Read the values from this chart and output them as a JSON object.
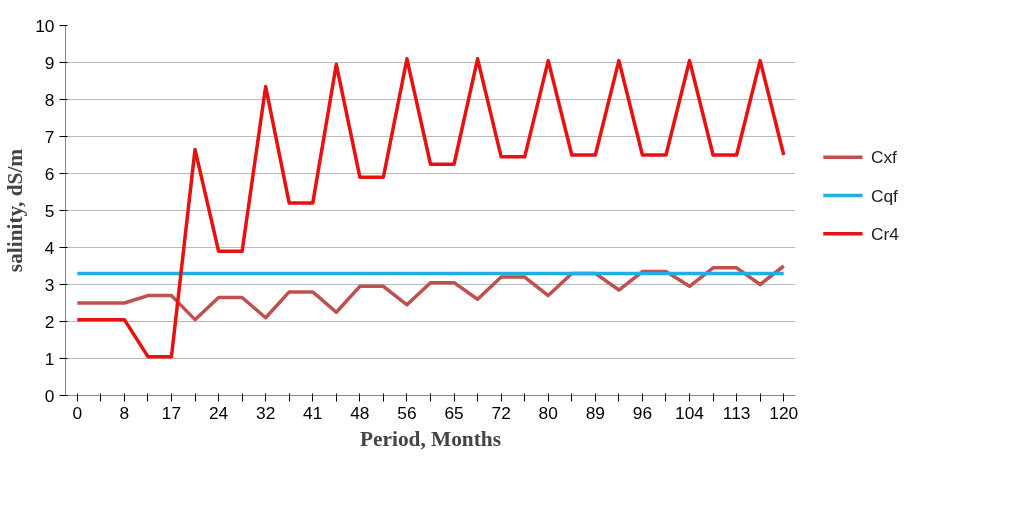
{
  "chart_data": {
    "type": "line",
    "xlabel": "Period, Months",
    "ylabel": "salinity, dS/m",
    "categories": [
      "0",
      null,
      "8",
      null,
      "17",
      null,
      "24",
      null,
      "32",
      null,
      "41",
      null,
      "48",
      null,
      "56",
      null,
      "65",
      null,
      "72",
      null,
      "80",
      null,
      "89",
      null,
      "96",
      null,
      "104",
      null,
      "113",
      null,
      "120"
    ],
    "series": [
      {
        "name": "Cxf",
        "color": "#c0504d",
        "values": [
          2.5,
          2.5,
          2.5,
          2.7,
          2.7,
          2.05,
          2.65,
          2.65,
          2.1,
          2.8,
          2.8,
          2.25,
          2.95,
          2.95,
          2.45,
          3.05,
          3.05,
          2.6,
          3.2,
          3.2,
          2.7,
          3.3,
          3.3,
          2.85,
          3.35,
          3.35,
          2.95,
          3.45,
          3.45,
          3.0,
          3.5
        ]
      },
      {
        "name": "Cqf",
        "color": "#1fb0e0",
        "values": [
          3.3,
          3.3,
          3.3,
          3.3,
          3.3,
          3.3,
          3.3,
          3.3,
          3.3,
          3.3,
          3.3,
          3.3,
          3.3,
          3.3,
          3.3,
          3.3,
          3.3,
          3.3,
          3.3,
          3.3,
          3.3,
          3.3,
          3.3,
          3.3,
          3.3,
          3.3,
          3.3,
          3.3,
          3.3,
          3.3,
          3.3
        ]
      },
      {
        "name": "Cr4",
        "color": "#e81010",
        "values": [
          2.05,
          2.05,
          2.05,
          1.05,
          1.05,
          6.65,
          3.9,
          3.9,
          8.35,
          5.2,
          5.2,
          8.95,
          5.9,
          5.9,
          9.1,
          6.25,
          6.25,
          9.1,
          6.45,
          6.45,
          9.05,
          6.5,
          6.5,
          9.05,
          6.5,
          6.5,
          9.05,
          6.5,
          6.5,
          9.05,
          6.5
        ]
      }
    ],
    "ylim": [
      0,
      10
    ],
    "yticks": [
      0,
      1,
      2,
      3,
      4,
      5,
      6,
      7,
      8,
      9,
      10
    ],
    "grid": "y",
    "legend": "right",
    "line_style": "solid",
    "marker": "none"
  }
}
